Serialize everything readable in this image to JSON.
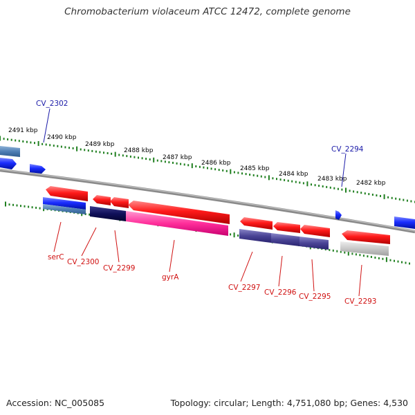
{
  "title": "Chromobacterium violaceum ATCC 12472, complete genome",
  "footer": {
    "accession": "Accession: NC_005085",
    "summary": "Topology: circular; Length: 4,751,080 bp; Genes: 4,530"
  },
  "colors": {
    "forward_gene": "#1a2dff",
    "reverse_gene": "#ff1a1a",
    "backbone": "#8a8a8a",
    "tick": "#1f7f1f",
    "blue_label": "#1a1aa8",
    "red_label": "#d01010"
  },
  "scale_labels": [
    {
      "id": "2491",
      "text": "2491 kbp"
    },
    {
      "id": "2490",
      "text": "2490 kbp"
    },
    {
      "id": "2489",
      "text": "2489 kbp"
    },
    {
      "id": "2488",
      "text": "2488 kbp"
    },
    {
      "id": "2487",
      "text": "2487 kbp"
    },
    {
      "id": "2486",
      "text": "2486 kbp"
    },
    {
      "id": "2485",
      "text": "2485 kbp"
    },
    {
      "id": "2484",
      "text": "2484 kbp"
    },
    {
      "id": "2483",
      "text": "2483 kbp"
    },
    {
      "id": "2482",
      "text": "2482 kbp"
    }
  ],
  "gene_labels": {
    "top": [
      "CV_2302",
      "CV_2294"
    ],
    "bottom": [
      "serC",
      "CV_2300",
      "CV_2299",
      "gyrA",
      "CV_2297",
      "CV_2296",
      "CV_2295",
      "CV_2293"
    ]
  }
}
